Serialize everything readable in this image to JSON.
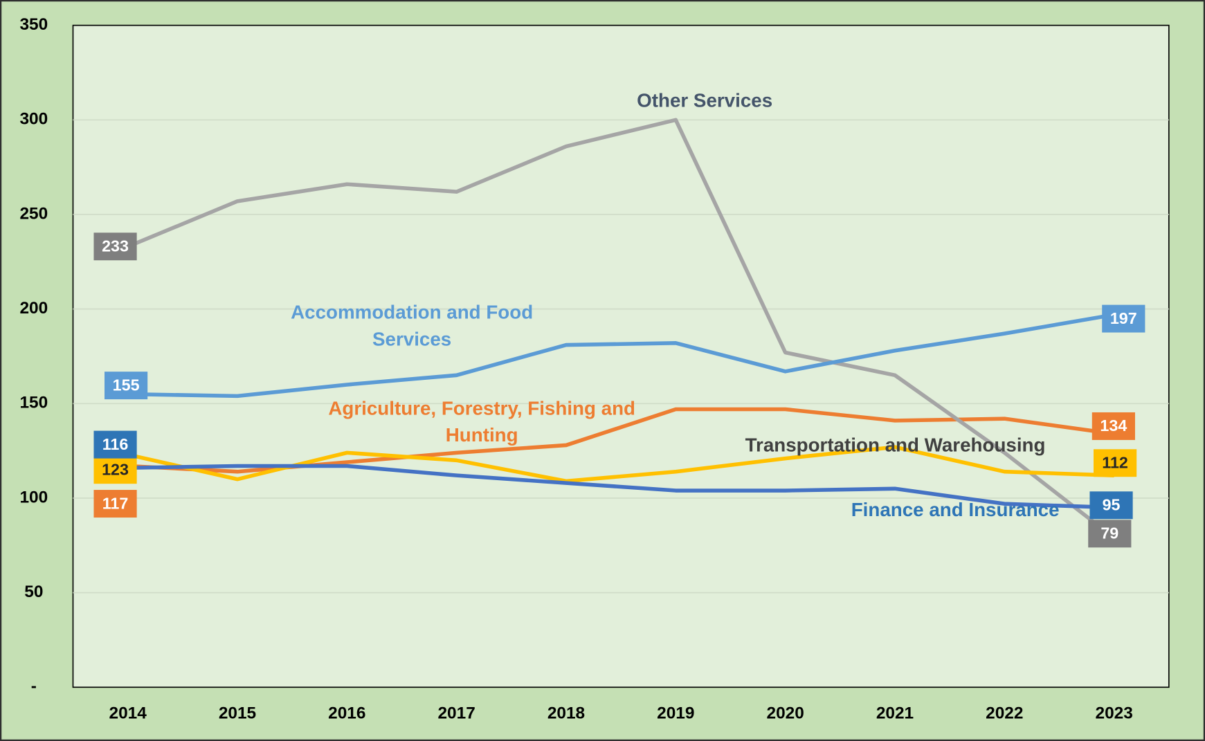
{
  "chart_data": {
    "type": "line",
    "categories": [
      "2014",
      "2015",
      "2016",
      "2017",
      "2018",
      "2019",
      "2020",
      "2021",
      "2022",
      "2023"
    ],
    "series": [
      {
        "name": "Other Services",
        "color": "#a5a5a5",
        "box_color": "#7f7f7f",
        "label_color": "#44546a",
        "values": [
          233,
          257,
          266,
          262,
          286,
          300,
          177,
          165,
          124,
          79
        ]
      },
      {
        "name": "Accommodation and Food Services",
        "color": "#5b9bd5",
        "box_color": "#5b9bd5",
        "label_color": "#5b9bd5",
        "values": [
          155,
          154,
          160,
          165,
          181,
          182,
          167,
          178,
          187,
          197
        ]
      },
      {
        "name": "Agriculture, Forestry, Fishing and Hunting",
        "color": "#ed7d31",
        "box_color": "#ed7d31",
        "label_color": "#ed7d31",
        "values": [
          117,
          114,
          119,
          124,
          128,
          147,
          147,
          141,
          142,
          134
        ]
      },
      {
        "name": "Transportation and Warehousing",
        "color": "#ffc000",
        "box_color": "#ffc000",
        "label_color": "#404040",
        "values": [
          123,
          110,
          124,
          120,
          109,
          114,
          121,
          127,
          114,
          112
        ]
      },
      {
        "name": "Finance and Insurance",
        "color": "#4472c4",
        "box_color": "#2e75b6",
        "label_color": "#2e75b6",
        "values": [
          116,
          117,
          117,
          112,
          108,
          104,
          104,
          105,
          97,
          95
        ]
      }
    ],
    "ylim": [
      0,
      350
    ],
    "yticks": [
      {
        "value": 0,
        "label": "-"
      },
      50,
      100,
      150,
      200,
      250,
      300,
      350
    ],
    "grid": true
  }
}
